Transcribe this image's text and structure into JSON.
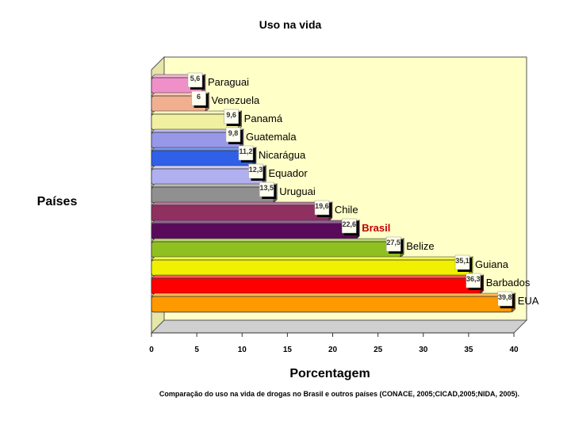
{
  "chart_data": {
    "type": "bar",
    "orientation": "horizontal",
    "title": "Uso na vida",
    "xlabel": "Porcentagem",
    "ylabel": "Países",
    "xlim": [
      0,
      40
    ],
    "xticks": [
      "0",
      "5",
      "10",
      "15",
      "20",
      "25",
      "30",
      "35",
      "40"
    ],
    "categories": [
      "Paraguai",
      "Venezuela",
      "Panamá",
      "Guatemala",
      "Nicarágua",
      "Equador",
      "Uruguai",
      "Chile",
      "Brasil",
      "Belize",
      "Guiana",
      "Barbados",
      "EUA"
    ],
    "values": [
      5.6,
      6,
      9.6,
      9.8,
      11.2,
      12.3,
      13.5,
      19.6,
      22.6,
      27.5,
      35.1,
      36.3,
      39.8
    ],
    "value_labels": [
      "5,6",
      "6",
      "9,6",
      "9,8",
      "11,2",
      "12,3",
      "13,5",
      "19,6",
      "22,6",
      "27,5",
      "35,1",
      "36,3",
      "39,8"
    ],
    "colors": [
      "#f090c8",
      "#f0b090",
      "#f0f0a0",
      "#9898e8",
      "#3060e8",
      "#b0b0f0",
      "#909090",
      "#903060",
      "#5a0a5a",
      "#90c020",
      "#f0f000",
      "#ff0000",
      "#ff9900"
    ],
    "highlight": {
      "category": "Brasil",
      "color": "#c00000"
    },
    "grid": false,
    "background": "#ffffc8"
  },
  "caption": "Comparação do uso na vida de drogas no Brasil e outros países (CONACE, 2005;CICAD,2005;NIDA, 2005)."
}
